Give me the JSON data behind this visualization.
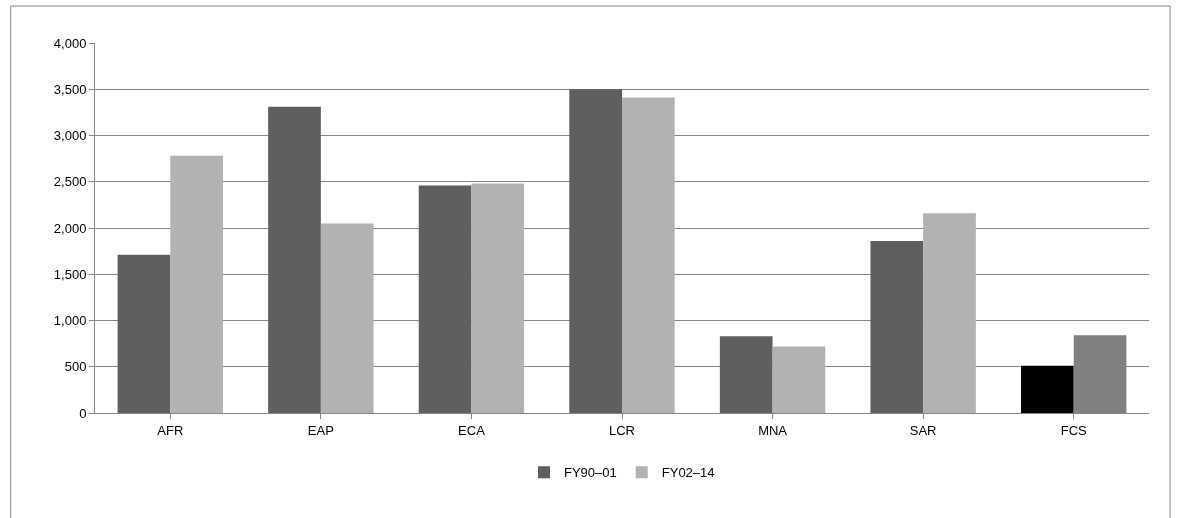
{
  "chart_data": {
    "type": "bar",
    "categories": [
      "AFR",
      "EAP",
      "ECA",
      "LCR",
      "MNA",
      "SAR",
      "FCS"
    ],
    "series": [
      {
        "name": "FY90–01",
        "colors": [
          "#5f5f5f",
          "#5f5f5f",
          "#5f5f5f",
          "#5f5f5f",
          "#5f5f5f",
          "#5f5f5f",
          "#000000"
        ],
        "values": [
          1710,
          3310,
          2460,
          3500,
          830,
          1860,
          510
        ]
      },
      {
        "name": "FY02–14",
        "colors": [
          "#b2b2b2",
          "#b2b2b2",
          "#b2b2b2",
          "#b2b2b2",
          "#b2b2b2",
          "#b2b2b2",
          "#808080"
        ],
        "values": [
          2780,
          2050,
          2480,
          3410,
          720,
          2160,
          840
        ]
      }
    ],
    "ylim": [
      0,
      4000
    ],
    "yticks": [
      {
        "value": 0,
        "label": "0"
      },
      {
        "value": 500,
        "label": "500"
      },
      {
        "value": 1000,
        "label": "1,000"
      },
      {
        "value": 1500,
        "label": "1,500"
      },
      {
        "value": 2000,
        "label": "2,000"
      },
      {
        "value": 2500,
        "label": "2,500"
      },
      {
        "value": 3000,
        "label": "3,000"
      },
      {
        "value": 3500,
        "label": "3,500"
      },
      {
        "value": 4000,
        "label": "4,000"
      }
    ],
    "grid": "y",
    "legend": "bottom"
  }
}
